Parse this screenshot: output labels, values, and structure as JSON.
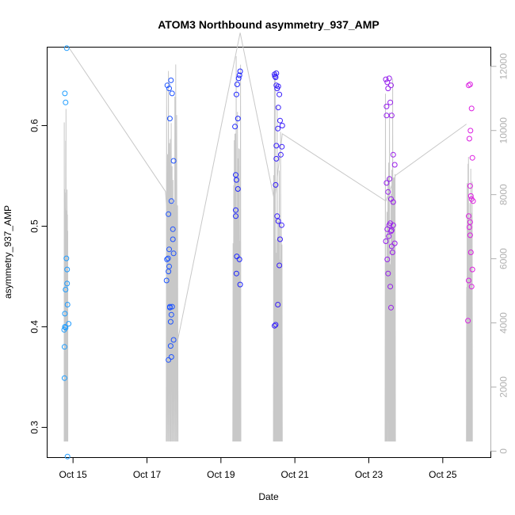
{
  "chart_data": {
    "type": "scatter",
    "title": "ATOM3 Northbound asymmetry_937_AMP",
    "xlabel": "Date",
    "ylabel": "asymmetry_937_AMP",
    "xlim": [
      14.3,
      26.3
    ],
    "ylim": [
      0.27,
      0.678
    ],
    "x_ticks": [
      15,
      17,
      19,
      21,
      23,
      25
    ],
    "x_tick_labels": [
      "Oct 15",
      "Oct 17",
      "Oct 19",
      "Oct 21",
      "Oct 23",
      "Oct 25"
    ],
    "y_ticks": [
      0.3,
      0.4,
      0.5,
      0.6
    ],
    "y_tick_labels": [
      "0.3",
      "0.4",
      "0.5",
      "0.6"
    ],
    "y2_lim": [
      -200,
      12600
    ],
    "y2_ticks": [
      0,
      2000,
      4000,
      6000,
      8000,
      10000,
      12000
    ],
    "y2_tick_labels": [
      "0",
      "2000",
      "4000",
      "6000",
      "8000",
      "10000",
      "12000"
    ],
    "colors": {
      "line": "#c8c8c8",
      "right_axis": "#b0b0b0",
      "color_start": "#1e9fff",
      "color_mid": "#1e1eff",
      "color_end": "#e01ee0"
    },
    "bursts": [
      {
        "start": 14.76,
        "end": 14.86,
        "min": 300,
        "max": 10700
      },
      {
        "start": 17.52,
        "end": 17.84,
        "min": 300,
        "max": 13100
      },
      {
        "start": 19.32,
        "end": 19.54,
        "min": 300,
        "max": 12900
      },
      {
        "start": 20.42,
        "end": 20.66,
        "min": 300,
        "max": 12500
      },
      {
        "start": 23.44,
        "end": 23.72,
        "min": 300,
        "max": 12300
      },
      {
        "start": 25.64,
        "end": 25.8,
        "min": 300,
        "max": 9300
      }
    ],
    "count_trend": [
      {
        "x": 14.88,
        "y": 12600
      },
      {
        "x": 17.5,
        "y": 8100
      },
      {
        "x": 17.82,
        "y": 3400
      },
      {
        "x": 19.52,
        "y": 13050
      },
      {
        "x": 20.45,
        "y": 7800
      },
      {
        "x": 20.66,
        "y": 9900
      },
      {
        "x": 23.46,
        "y": 7800
      },
      {
        "x": 23.72,
        "y": 8600
      },
      {
        "x": 25.64,
        "y": 10200
      }
    ],
    "series": [
      {
        "name": "asymmetry_937_AMP",
        "x": [
          14.78,
          14.8,
          14.78,
          14.76,
          14.83,
          14.82,
          14.84,
          14.84,
          14.8,
          14.77,
          14.77,
          14.8,
          14.85,
          14.78,
          14.85,
          14.88,
          17.55,
          17.6,
          17.65,
          17.68,
          17.62,
          17.72,
          17.58,
          17.66,
          17.7,
          17.7,
          17.72,
          17.6,
          17.57,
          17.54,
          17.6,
          17.58,
          17.53,
          17.62,
          17.68,
          17.62,
          17.66,
          17.64,
          17.72,
          17.66,
          17.58,
          17.64,
          19.52,
          19.5,
          19.48,
          19.44,
          19.42,
          19.46,
          19.38,
          19.4,
          19.42,
          19.46,
          19.4,
          19.4,
          19.43,
          19.5,
          19.42,
          19.52,
          20.45,
          20.5,
          20.48,
          20.46,
          20.5,
          20.55,
          20.52,
          20.58,
          20.55,
          20.6,
          20.66,
          20.54,
          20.5,
          20.65,
          20.62,
          20.5,
          20.48,
          20.52,
          20.55,
          20.64,
          20.6,
          20.58,
          20.54,
          20.45,
          20.48,
          23.46,
          23.5,
          23.55,
          23.6,
          23.52,
          23.58,
          23.48,
          23.62,
          23.66,
          23.7,
          23.56,
          23.48,
          23.52,
          23.6,
          23.66,
          23.58,
          23.5,
          23.62,
          23.54,
          23.46,
          23.7,
          23.62,
          23.64,
          23.5,
          23.52,
          23.58,
          23.6,
          23.66,
          23.55,
          23.48,
          23.6,
          25.7,
          25.74,
          25.78,
          25.75,
          25.72,
          25.8,
          25.76,
          25.78,
          25.7,
          25.74,
          25.72,
          25.74,
          25.76,
          25.8,
          25.7,
          25.78,
          25.68,
          25.74,
          25.82
        ],
        "y": [
          0.632,
          0.623,
          0.413,
          0.397,
          0.677,
          0.468,
          0.457,
          0.443,
          0.437,
          0.38,
          0.349,
          0.399,
          0.422,
          0.4,
          0.271,
          0.403,
          0.64,
          0.637,
          0.645,
          0.632,
          0.607,
          0.565,
          0.512,
          0.525,
          0.497,
          0.487,
          0.473,
          0.477,
          0.468,
          0.467,
          0.46,
          0.455,
          0.446,
          0.42,
          0.42,
          0.419,
          0.412,
          0.405,
          0.387,
          0.37,
          0.367,
          0.381,
          0.654,
          0.65,
          0.647,
          0.641,
          0.631,
          0.607,
          0.599,
          0.551,
          0.546,
          0.537,
          0.516,
          0.51,
          0.47,
          0.467,
          0.453,
          0.442,
          0.651,
          0.652,
          0.648,
          0.649,
          0.64,
          0.639,
          0.637,
          0.631,
          0.618,
          0.605,
          0.6,
          0.597,
          0.58,
          0.579,
          0.571,
          0.567,
          0.541,
          0.51,
          0.505,
          0.501,
          0.487,
          0.461,
          0.422,
          0.401,
          0.402,
          0.646,
          0.643,
          0.647,
          0.64,
          0.637,
          0.623,
          0.619,
          0.61,
          0.571,
          0.561,
          0.547,
          0.543,
          0.534,
          0.527,
          0.524,
          0.503,
          0.497,
          0.496,
          0.49,
          0.485,
          0.483,
          0.48,
          0.474,
          0.467,
          0.453,
          0.44,
          0.419,
          0.501,
          0.501,
          0.61,
          0.495,
          0.64,
          0.641,
          0.617,
          0.595,
          0.587,
          0.568,
          0.53,
          0.527,
          0.51,
          0.504,
          0.499,
          0.491,
          0.474,
          0.457,
          0.446,
          0.44,
          0.406,
          0.54,
          0.525
        ]
      }
    ]
  }
}
